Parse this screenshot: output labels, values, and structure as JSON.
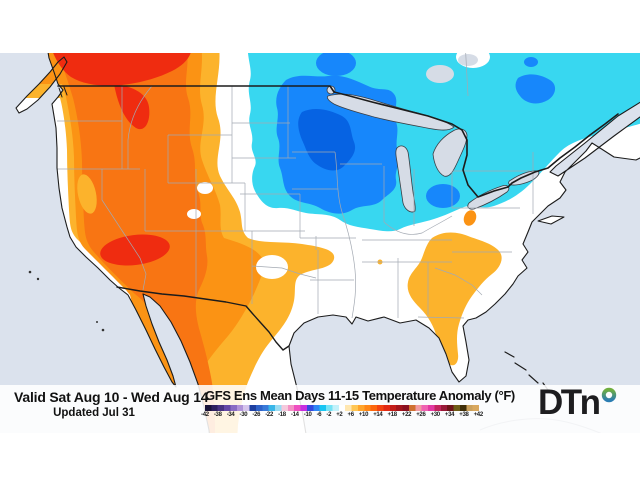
{
  "map": {
    "type": "temperature-anomaly-contour-map",
    "region": "Continental United States with southern Canada and northern Mexico",
    "colors": {
      "ocean": "#dbe2ed",
      "land": "#ffffff",
      "lake": "#d6dce6",
      "cyan": "#38d7f0",
      "blue": "#1787fb",
      "blue_dark": "#0663e3",
      "amber": "#fcb32c",
      "orange": "#fb9314",
      "orange_deep": "#f87513",
      "red": "#ef2c10",
      "state_border": "#a3a9b2",
      "country_border": "#1c1c1c"
    },
    "anomaly_summary": [
      {
        "region": "Pacific Northwest / Northern Rockies",
        "anomaly_f": "+10 to +18"
      },
      {
        "region": "Great Basin / Southwest / California interior",
        "anomaly_f": "+6 to +14"
      },
      {
        "region": "Upper Midwest / Great Lakes / Northeast",
        "anomaly_f": "-2 to -10"
      },
      {
        "region": "Minnesota / Iowa core",
        "anomaly_f": "-6 to -12"
      },
      {
        "region": "Texas / Southern Plains / northern Mexico",
        "anomaly_f": "+2 to +8"
      },
      {
        "region": "Southeast coast / Georgia / Carolinas / Florida",
        "anomaly_f": "+2 to +6"
      },
      {
        "region": "Ohio Valley / Mid-South / New England",
        "anomaly_f": "near 0"
      }
    ]
  },
  "footer": {
    "valid_range": "Valid Sat Aug 10 - Wed Aug 14",
    "updated": "Updated Jul 31",
    "product_title": "GFS Ens Mean Days 11-15 Temperature Anomaly (°F)",
    "brand": "DTN",
    "brand_ring_colors": {
      "top": "#6fae3e",
      "bottom": "#2b7db2"
    },
    "colorbar": {
      "tick_labels": [
        "-42",
        "-38",
        "-34",
        "-30",
        "-26",
        "-22",
        "-18",
        "-14",
        "-10",
        "-6",
        "-2",
        "+2",
        "+6",
        "+10",
        "+14",
        "+18",
        "+22",
        "+26",
        "+30",
        "+34",
        "+38",
        "+42"
      ],
      "segment_colors": [
        "#191238",
        "#2e1f5e",
        "#473181",
        "#6448a6",
        "#8a6cc3",
        "#b093d8",
        "#d6c4ec",
        "#1e3fa0",
        "#2f62c8",
        "#3a7ad8",
        "#39b6e8",
        "#9adcf2",
        "#f5c9dc",
        "#f391c4",
        "#ee4fc0",
        "#c62ee0",
        "#3448e0",
        "#2f86f5",
        "#18c5f2",
        "#76e3f5",
        "#c2f1fa",
        "#ffffff",
        "#ffe7b0",
        "#ffc653",
        "#ffa42b",
        "#ff8617",
        "#fc660e",
        "#f34312",
        "#e22a14",
        "#c21d19",
        "#a2151c",
        "#8a1020",
        "#cf7030",
        "#f29aa2",
        "#f063b2",
        "#e23aa2",
        "#c2245e",
        "#981a38",
        "#6e1418",
        "#6e5c16",
        "#3e2e08",
        "#caa05c",
        "#d9a85e"
      ]
    }
  }
}
